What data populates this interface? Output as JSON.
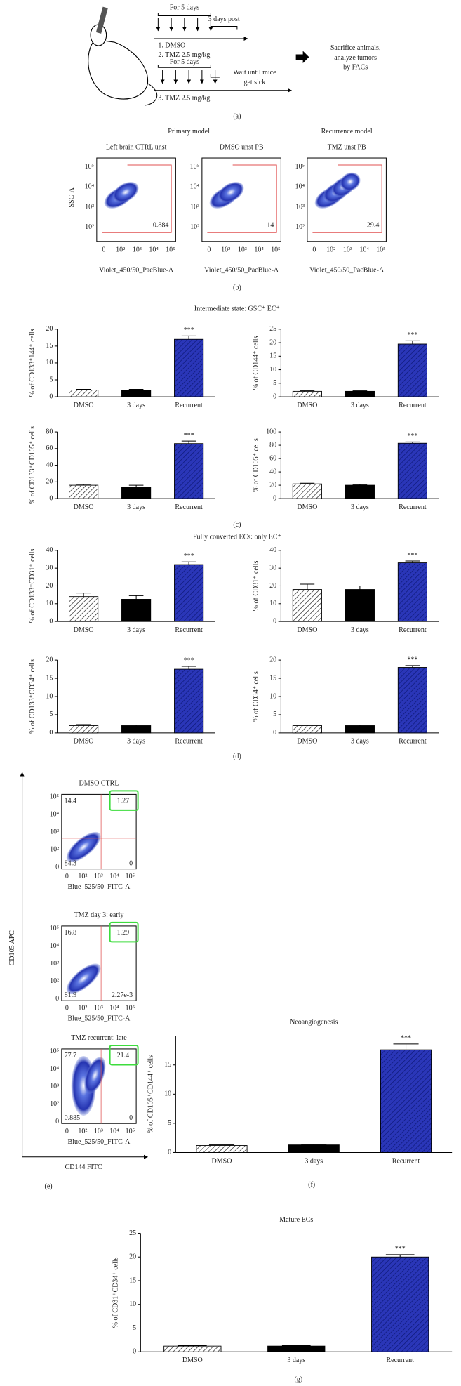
{
  "schematic": {
    "first_duration": "For 5 days",
    "post_label": "3 days post",
    "group_1": "1. DMSO",
    "group_2": "2. TMZ 2.5 mg/kg",
    "second_duration": "For 5 days",
    "wait_lines": [
      "Wait until mice",
      "get sick"
    ],
    "group_3": "3. TMZ 2.5 mg/kg",
    "outcome_lines": [
      "Sacrifice animals,",
      "analyze tumors",
      "by FACs"
    ]
  },
  "panel_labels": [
    "(a)",
    "(b)",
    "(c)",
    "(d)",
    "(e)",
    "(f)",
    "(g)"
  ],
  "flow_b": {
    "group_titles": [
      "Primary model",
      "Recurrence model"
    ],
    "y_label": "SSC-A",
    "x_label": "Violet_450/50_PacBlue-A",
    "x_tick_labels": [
      "0",
      "10²",
      "10³",
      "10⁴",
      "10⁵"
    ],
    "y_tick_labels": [
      "10⁵",
      "10⁴",
      "10³",
      "10²"
    ],
    "plots": [
      {
        "title": "Left brain CTRL unst",
        "gate": "0.884"
      },
      {
        "title": "DMSO unst PB",
        "gate": "14"
      },
      {
        "title": "TMZ unst PB",
        "gate": "29.4"
      }
    ]
  },
  "flow_e": {
    "y_label": "CD105 APC",
    "x_label": "CD144 FITC",
    "plot_x_label": "Blue_525/50_FITC-A",
    "x_tick_labels": [
      "0",
      "10²",
      "10³",
      "10⁴",
      "10⁵"
    ],
    "y_tick_labels": [
      "10⁵",
      "10⁴",
      "10³",
      "10²",
      "0"
    ],
    "plots": [
      {
        "title": "DMSO CTRL",
        "quadrants": [
          "14.4",
          "1.27",
          "84.3",
          "0"
        ]
      },
      {
        "title": "TMZ day 3: early",
        "quadrants": [
          "16.8",
          "1.29",
          "81.9",
          "2.27e-3"
        ]
      },
      {
        "title": "TMZ recurrent: late",
        "quadrants": [
          "77.7",
          "21.4",
          "0.885",
          "0"
        ]
      }
    ]
  },
  "section_titles": [
    "Intermediate state: GSC⁺ EC⁺",
    "Fully converted ECs: only EC⁺"
  ],
  "chart_data": [
    {
      "type": "bar",
      "y_label": "% of CD133⁺144⁺ cells",
      "categories": [
        "DMSO",
        "3 days",
        "Recurrent"
      ],
      "values": [
        2,
        2,
        17
      ],
      "errors": [
        0.2,
        0.2,
        1
      ],
      "colors": [
        "#ffffff",
        "#000000",
        "#2a36b8"
      ],
      "hatch": [
        true,
        false,
        true
      ],
      "annotation": "***",
      "ylim": [
        0,
        20
      ],
      "yticks": [
        0,
        5,
        10,
        15,
        20
      ]
    },
    {
      "type": "bar",
      "y_label": "% of CD144⁺ cells",
      "categories": [
        "DMSO",
        "3 days",
        "Recurrent"
      ],
      "values": [
        2,
        2,
        19.5
      ],
      "errors": [
        0.2,
        0.2,
        1.2
      ],
      "colors": [
        "#ffffff",
        "#000000",
        "#2a36b8"
      ],
      "hatch": [
        true,
        false,
        true
      ],
      "annotation": "***",
      "ylim": [
        0,
        25
      ],
      "yticks": [
        0,
        5,
        10,
        15,
        20,
        25
      ]
    },
    {
      "type": "bar",
      "y_label": "% of CD133⁺CD105⁺ cells",
      "categories": [
        "DMSO",
        "3 days",
        "Recurrent"
      ],
      "values": [
        16,
        14,
        66
      ],
      "errors": [
        1,
        2,
        3
      ],
      "colors": [
        "#ffffff",
        "#000000",
        "#2a36b8"
      ],
      "hatch": [
        true,
        false,
        true
      ],
      "annotation": "***",
      "ylim": [
        0,
        80
      ],
      "yticks": [
        0,
        20,
        40,
        60,
        80
      ]
    },
    {
      "type": "bar",
      "y_label": "% of CD105⁺ cells",
      "categories": [
        "DMSO",
        "3 days",
        "Recurrent"
      ],
      "values": [
        22,
        20,
        83
      ],
      "errors": [
        1,
        1,
        2
      ],
      "colors": [
        "#ffffff",
        "#000000",
        "#2a36b8"
      ],
      "hatch": [
        true,
        false,
        true
      ],
      "annotation": "***",
      "ylim": [
        0,
        100
      ],
      "yticks": [
        0,
        20,
        40,
        60,
        80,
        100
      ]
    },
    {
      "type": "bar",
      "y_label": "% of CD133⁺CD31⁺ cells",
      "categories": [
        "DMSO",
        "3 days",
        "Recurrent"
      ],
      "values": [
        14,
        12.5,
        32
      ],
      "errors": [
        2,
        2,
        1.5
      ],
      "colors": [
        "#ffffff",
        "#000000",
        "#2a36b8"
      ],
      "hatch": [
        true,
        false,
        true
      ],
      "annotation": "***",
      "ylim": [
        0,
        40
      ],
      "yticks": [
        0,
        10,
        20,
        30,
        40
      ]
    },
    {
      "type": "bar",
      "y_label": "% of CD31⁺ cells",
      "categories": [
        "DMSO",
        "3 days",
        "Recurrent"
      ],
      "values": [
        18,
        18,
        33
      ],
      "errors": [
        3,
        2,
        1
      ],
      "colors": [
        "#ffffff",
        "#000000",
        "#2a36b8"
      ],
      "hatch": [
        true,
        false,
        true
      ],
      "annotation": "***",
      "ylim": [
        0,
        40
      ],
      "yticks": [
        0,
        10,
        20,
        30,
        40
      ]
    },
    {
      "type": "bar",
      "y_label": "% of CD133⁺CD34⁺ cells",
      "categories": [
        "DMSO",
        "3 days",
        "Recurrent"
      ],
      "values": [
        2,
        2,
        17.5
      ],
      "errors": [
        0.3,
        0.2,
        0.8
      ],
      "colors": [
        "#ffffff",
        "#000000",
        "#2a36b8"
      ],
      "hatch": [
        true,
        false,
        true
      ],
      "annotation": "***",
      "ylim": [
        0,
        20
      ],
      "yticks": [
        0,
        5,
        10,
        15,
        20
      ]
    },
    {
      "type": "bar",
      "y_label": "% of CD34⁺ cells",
      "categories": [
        "DMSO",
        "3 days",
        "Recurrent"
      ],
      "values": [
        2,
        2,
        18
      ],
      "errors": [
        0.2,
        0.2,
        0.5
      ],
      "colors": [
        "#ffffff",
        "#000000",
        "#2a36b8"
      ],
      "hatch": [
        true,
        false,
        true
      ],
      "annotation": "***",
      "ylim": [
        0,
        20
      ],
      "yticks": [
        0,
        5,
        10,
        15,
        20
      ]
    },
    {
      "type": "bar",
      "title": "Neoangiogenesis",
      "y_label": "% of CD105⁺CD144⁺ cells",
      "categories": [
        "DMSO",
        "3 days",
        "Recurrent"
      ],
      "values": [
        1.2,
        1.3,
        17.6
      ],
      "errors": [
        0.1,
        0.1,
        1
      ],
      "colors": [
        "#ffffff",
        "#000000",
        "#2a36b8"
      ],
      "hatch": [
        true,
        false,
        true
      ],
      "annotation": "***",
      "ylim": [
        0,
        20
      ],
      "yticks": [
        0,
        5,
        10,
        15
      ]
    },
    {
      "type": "bar",
      "title": "Mature ECs",
      "y_label": "% of CD31⁺CD34⁺ cells",
      "categories": [
        "DMSO",
        "3 days",
        "Recurrent"
      ],
      "values": [
        1.2,
        1.2,
        20
      ],
      "errors": [
        0.1,
        0.1,
        0.5
      ],
      "colors": [
        "#ffffff",
        "#000000",
        "#2a36b8"
      ],
      "hatch": [
        true,
        false,
        true
      ],
      "annotation": "***",
      "ylim": [
        0,
        25
      ],
      "yticks": [
        0,
        5,
        10,
        15,
        20,
        25
      ]
    }
  ]
}
